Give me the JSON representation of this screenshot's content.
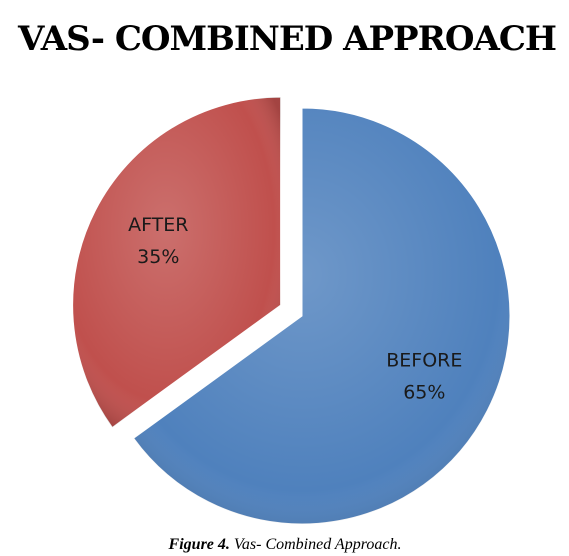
{
  "chart_data": {
    "type": "pie",
    "title": "VAS- COMBINED APPROACH",
    "categories": [
      "BEFORE",
      "AFTER"
    ],
    "values": [
      65,
      35
    ],
    "value_labels": [
      "65%",
      "35%"
    ],
    "colors": [
      "#4f81bd",
      "#c0504d"
    ],
    "exploded": "AFTER",
    "caption_label": "Figure 4.",
    "caption_text": "Vas- Combined Approach."
  }
}
